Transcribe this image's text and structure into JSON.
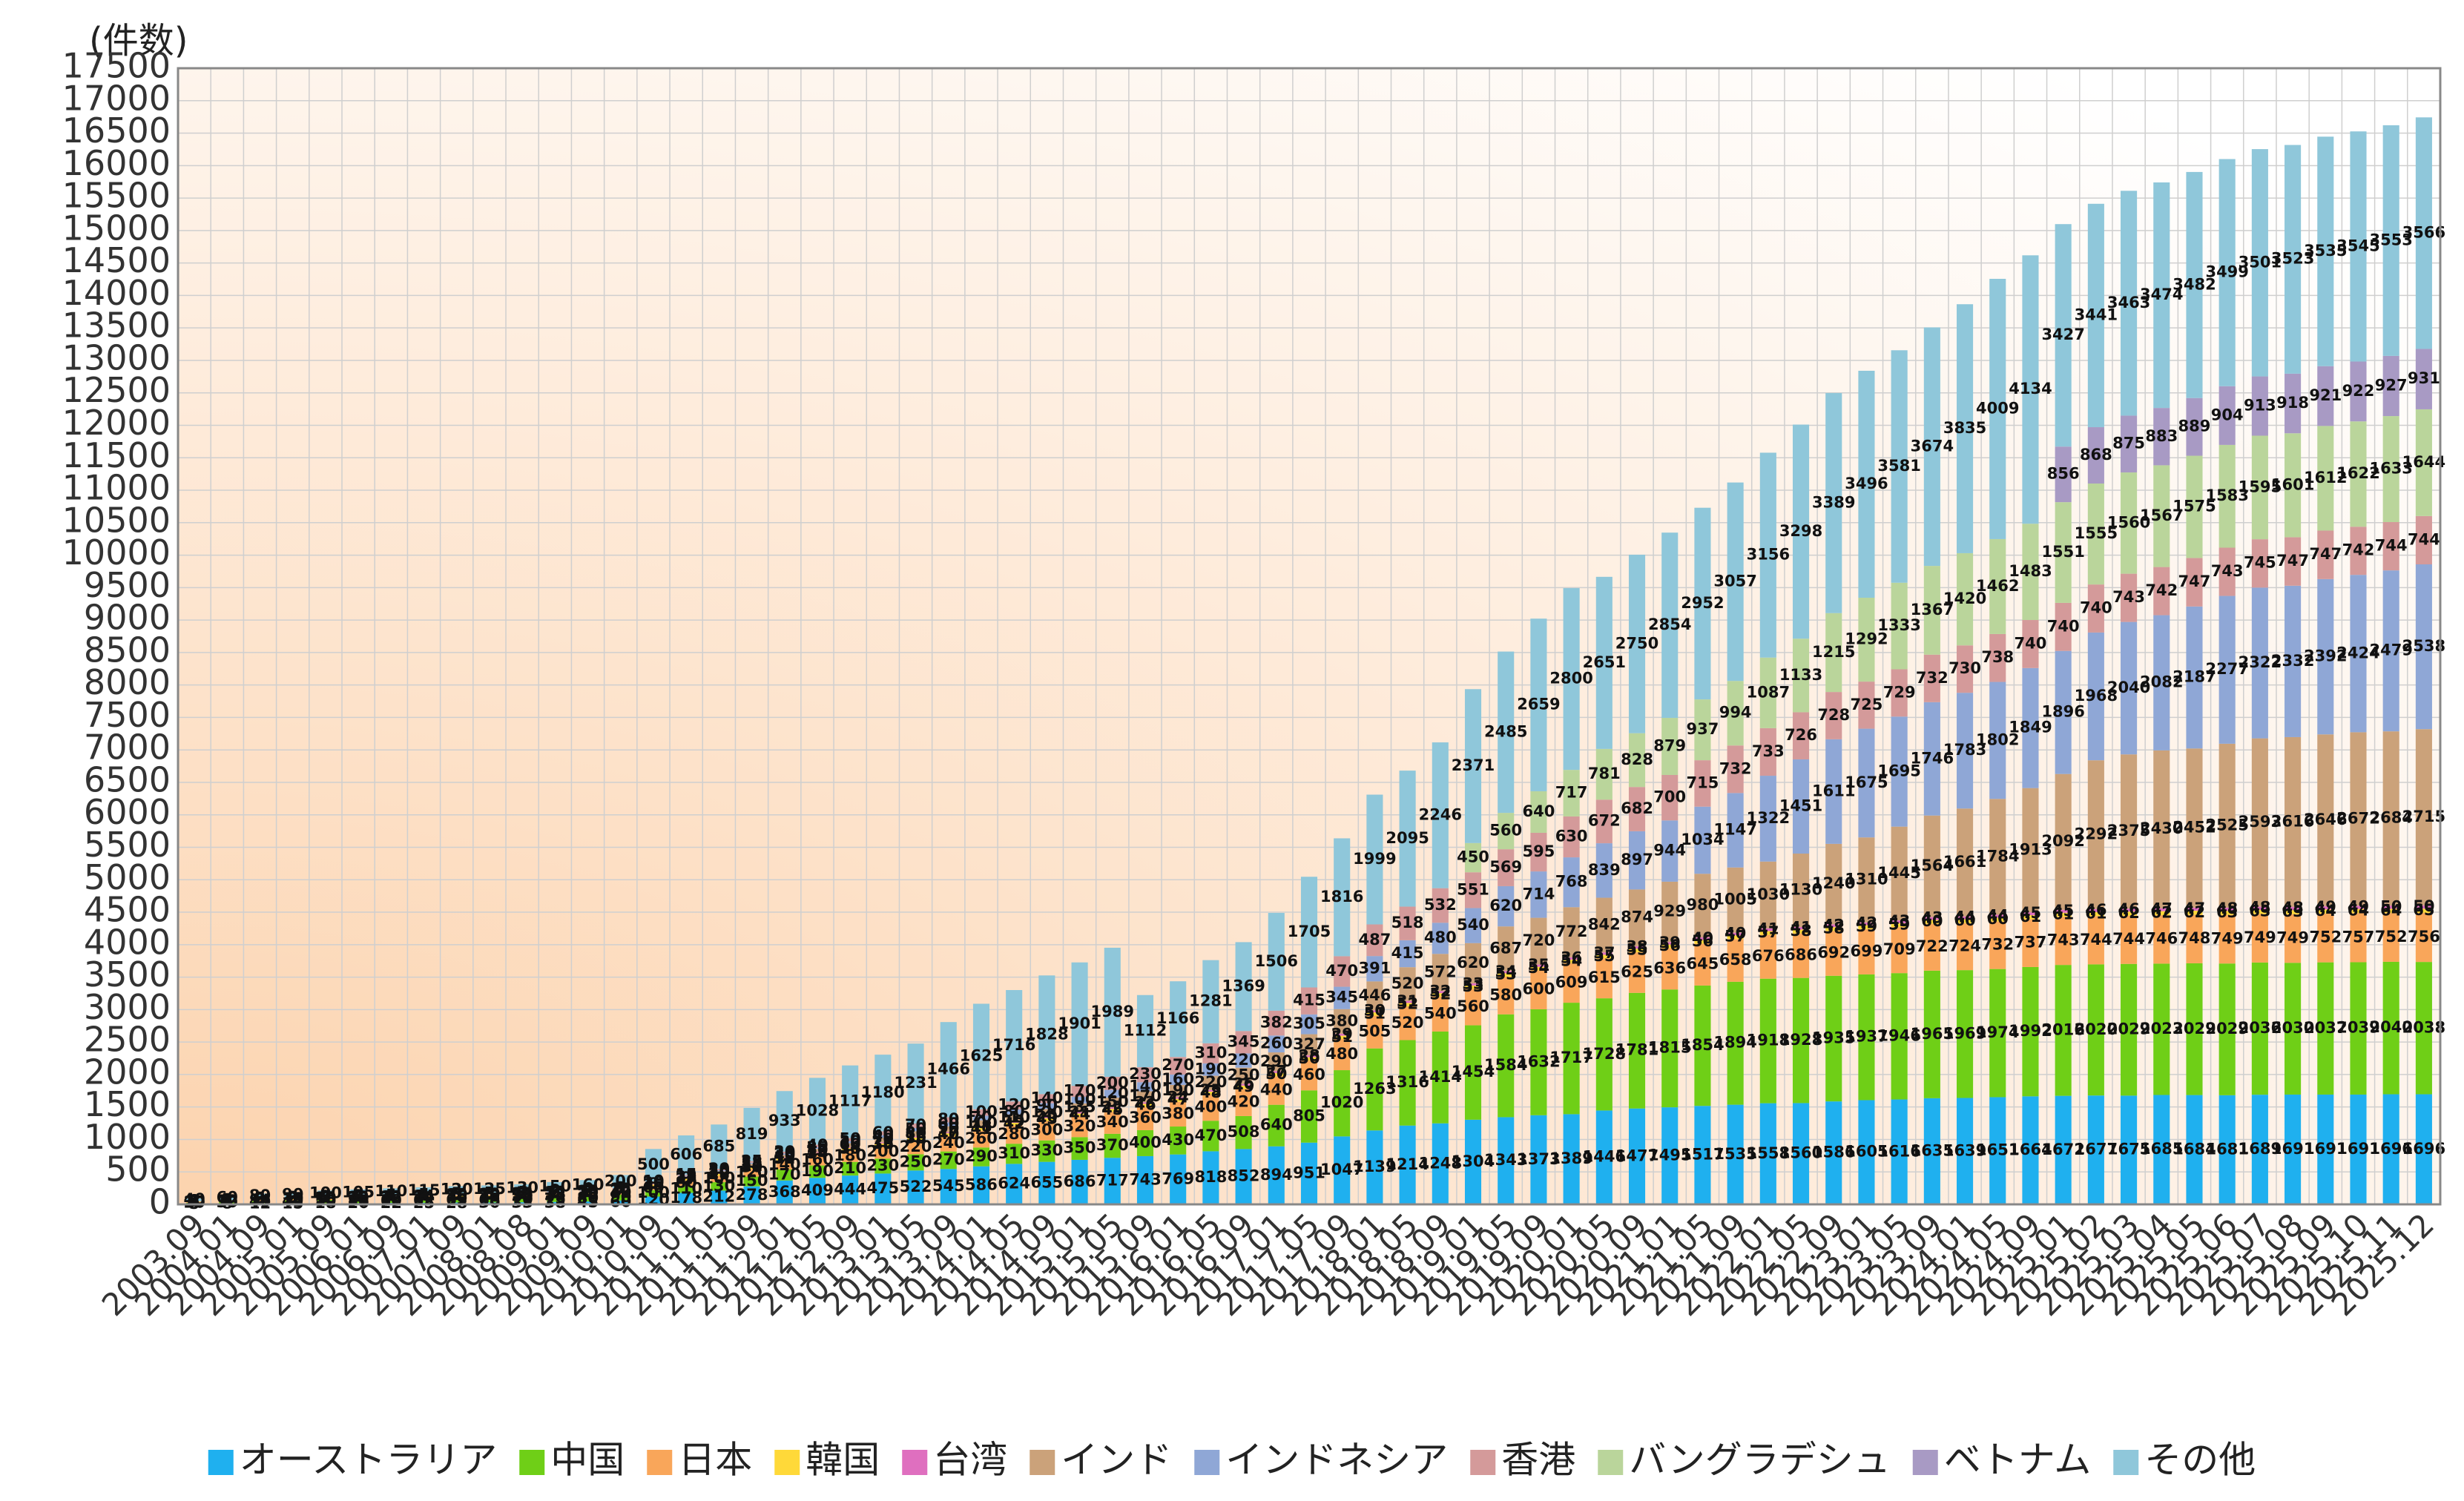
{
  "chart_data": {
    "type": "stacked_bar",
    "y_axis_label": "(件数)",
    "categories": [
      "2003.09",
      "2004.01",
      "2004.09",
      "2005.01",
      "2005.09",
      "2006.01",
      "2006.09",
      "2007.01",
      "2007.09",
      "2008.01",
      "2008.08",
      "2009.01",
      "2009.09",
      "2010.01",
      "2010.09",
      "2011.01",
      "2011.05",
      "2011.09",
      "2012.01",
      "2012.05",
      "2012.09",
      "2013.01",
      "2013.05",
      "2013.09",
      "2014.01",
      "2014.05",
      "2014.09",
      "2015.01",
      "2015.05",
      "2015.09",
      "2016.01",
      "2016.05",
      "2016.09",
      "2017.01",
      "2017.05",
      "2017.09",
      "2018.01",
      "2018.05",
      "2018.09",
      "2019.01",
      "2019.05",
      "2019.09",
      "2020.01",
      "2020.05",
      "2020.09",
      "2021.01",
      "2021.05",
      "2021.09",
      "2022.01",
      "2022.05",
      "2022.09",
      "2023.01",
      "2023.05",
      "2023.09",
      "2024.01",
      "2024.05",
      "2024.09",
      "2025.01",
      "2025.02",
      "2025.03",
      "2025.04",
      "2025.05",
      "2025.06",
      "2025.07",
      "2025.08",
      "2025.09",
      "2025.10",
      "2025.11",
      "2025.12"
    ],
    "series": [
      {
        "name": "オーストラリア",
        "color": "#1fb0ef",
        "values": [
          5,
          8,
          12,
          15,
          18,
          20,
          22,
          25,
          28,
          30,
          33,
          38,
          45,
          60,
          120,
          178,
          212,
          278,
          368,
          409,
          444,
          475,
          522,
          545,
          586,
          624,
          655,
          686,
          717,
          743,
          769,
          818,
          852,
          894,
          951,
          1047,
          1139,
          1214,
          1248,
          1304,
          1343,
          1373,
          1389,
          1446,
          1477,
          1495,
          1517,
          1535,
          1558,
          1560,
          1586,
          1605,
          1616,
          1635,
          1639,
          1651,
          1664,
          1672,
          1677,
          1675,
          1685,
          1684,
          1681,
          1689,
          1691,
          1691,
          1691,
          1696,
          1696
        ]
      },
      {
        "name": "中国",
        "color": "#6fcf17",
        "values": [
          20,
          30,
          40,
          45,
          50,
          55,
          60,
          62,
          65,
          68,
          70,
          75,
          80,
          90,
          100,
          110,
          130,
          150,
          170,
          190,
          210,
          230,
          250,
          270,
          290,
          310,
          330,
          350,
          370,
          400,
          430,
          470,
          508,
          640,
          805,
          1020,
          1263,
          1316,
          1414,
          1454,
          1584,
          1632,
          1717,
          1728,
          1781,
          1815,
          1854,
          1894,
          1918,
          1928,
          1935,
          1937,
          1946,
          1965,
          1969,
          1974,
          1992,
          2016,
          2020,
          2029,
          2023,
          2029,
          2029,
          2036,
          2030,
          2037,
          2039,
          2040,
          2038
        ]
      },
      {
        "name": "日本",
        "color": "#f9a65a",
        "values": [
          10,
          12,
          14,
          16,
          18,
          20,
          22,
          24,
          26,
          28,
          30,
          32,
          35,
          40,
          60,
          80,
          100,
          120,
          140,
          160,
          180,
          200,
          220,
          240,
          260,
          280,
          300,
          320,
          340,
          360,
          380,
          400,
          420,
          440,
          460,
          480,
          505,
          520,
          540,
          560,
          580,
          600,
          609,
          615,
          625,
          636,
          645,
          658,
          676,
          686,
          692,
          699,
          709,
          722,
          724,
          732,
          737,
          743,
          744,
          744,
          746,
          748,
          749,
          749,
          749,
          752,
          757,
          752,
          756
        ]
      },
      {
        "name": "韓国",
        "color": "#ffd939",
        "values": [
          5,
          6,
          8,
          10,
          10,
          12,
          12,
          14,
          15,
          15,
          16,
          18,
          20,
          22,
          25,
          27,
          28,
          30,
          32,
          34,
          35,
          36,
          38,
          40,
          41,
          42,
          43,
          44,
          45,
          46,
          47,
          48,
          49,
          50,
          50,
          51,
          51,
          52,
          52,
          53,
          53,
          54,
          54,
          55,
          55,
          56,
          56,
          57,
          57,
          58,
          58,
          59,
          59,
          60,
          60,
          60,
          61,
          61,
          61,
          62,
          62,
          62,
          63,
          63,
          63,
          64,
          64,
          64,
          65
        ]
      },
      {
        "name": "台湾",
        "color": "#df6fbf",
        "values": [
          2,
          2,
          3,
          3,
          3,
          4,
          4,
          4,
          5,
          5,
          5,
          6,
          6,
          7,
          8,
          9,
          10,
          11,
          12,
          13,
          14,
          15,
          16,
          17,
          18,
          19,
          20,
          21,
          22,
          23,
          24,
          25,
          26,
          27,
          28,
          29,
          30,
          31,
          32,
          33,
          34,
          35,
          36,
          37,
          38,
          39,
          40,
          40,
          41,
          41,
          42,
          42,
          43,
          43,
          44,
          44,
          45,
          45,
          46,
          46,
          47,
          47,
          48,
          48,
          48,
          49,
          49,
          50,
          50
        ]
      },
      {
        "name": "インド",
        "color": "#cba27a",
        "values": [
          5,
          5,
          6,
          6,
          7,
          8,
          8,
          9,
          10,
          10,
          11,
          12,
          13,
          15,
          20,
          25,
          30,
          35,
          40,
          50,
          60,
          70,
          80,
          90,
          100,
          110,
          120,
          135,
          150,
          170,
          190,
          220,
          250,
          290,
          327,
          380,
          446,
          520,
          572,
          620,
          687,
          720,
          772,
          842,
          874,
          929,
          980,
          1005,
          1030,
          1130,
          1240,
          1310,
          1445,
          1564,
          1661,
          1784,
          1913,
          2092,
          2292,
          2375,
          2430,
          2452,
          2525,
          2593,
          2616,
          2646,
          2672,
          2684,
          2715
        ]
      },
      {
        "name": "インドネシア",
        "color": "#8fa7d6",
        "values": [
          2,
          2,
          3,
          3,
          4,
          4,
          5,
          5,
          6,
          6,
          7,
          7,
          8,
          9,
          10,
          12,
          15,
          18,
          20,
          25,
          30,
          40,
          50,
          60,
          70,
          80,
          90,
          100,
          120,
          140,
          160,
          190,
          220,
          260,
          305,
          345,
          391,
          415,
          480,
          540,
          620,
          714,
          768,
          839,
          897,
          944,
          1034,
          1147,
          1322,
          1451,
          1611,
          1675,
          1695,
          1746,
          1783,
          1802,
          1849,
          1896,
          1968,
          2040,
          2082,
          2187,
          2277,
          2322,
          2332,
          2392,
          2424,
          2479,
          2538
        ]
      },
      {
        "name": "香港",
        "color": "#d49a9a",
        "values": [
          1,
          1,
          2,
          2,
          3,
          3,
          4,
          4,
          5,
          5,
          6,
          6,
          7,
          8,
          10,
          15,
          20,
          25,
          30,
          40,
          50,
          60,
          70,
          80,
          100,
          120,
          140,
          170,
          200,
          230,
          270,
          310,
          345,
          382,
          415,
          470,
          487,
          518,
          532,
          551,
          569,
          595,
          630,
          672,
          682,
          700,
          715,
          732,
          733,
          726,
          728,
          725,
          729,
          732,
          730,
          738,
          740,
          740,
          740,
          743,
          742,
          747,
          743,
          745,
          747,
          747,
          742,
          744,
          744
        ]
      },
      {
        "name": "バングラデシュ",
        "color": "#bad59b",
        "values": [
          0,
          0,
          0,
          0,
          0,
          0,
          0,
          0,
          0,
          0,
          0,
          0,
          0,
          0,
          0,
          0,
          0,
          0,
          0,
          0,
          0,
          0,
          0,
          0,
          0,
          0,
          0,
          0,
          0,
          0,
          0,
          0,
          0,
          0,
          0,
          0,
          0,
          0,
          0,
          450,
          560,
          640,
          717,
          781,
          828,
          879,
          937,
          994,
          1087,
          1133,
          1215,
          1292,
          1333,
          1367,
          1420,
          1462,
          1483,
          1551,
          1555,
          1560,
          1567,
          1575,
          1583,
          1595,
          1601,
          1612,
          1622,
          1633,
          1644
        ]
      },
      {
        "name": "ベトナム",
        "color": "#a89ac4",
        "values": [
          0,
          0,
          0,
          0,
          0,
          0,
          0,
          0,
          0,
          0,
          0,
          0,
          0,
          0,
          0,
          0,
          0,
          0,
          0,
          0,
          0,
          0,
          0,
          0,
          0,
          0,
          0,
          0,
          0,
          0,
          0,
          0,
          0,
          0,
          0,
          0,
          0,
          0,
          0,
          0,
          0,
          0,
          0,
          0,
          0,
          0,
          0,
          0,
          0,
          0,
          0,
          0,
          0,
          0,
          0,
          0,
          0,
          856,
          868,
          875,
          883,
          889,
          904,
          913,
          918,
          921,
          922,
          927,
          931
        ]
      },
      {
        "name": "その他",
        "color": "#8fc7da",
        "values": [
          40,
          60,
          80,
          90,
          100,
          105,
          110,
          115,
          120,
          125,
          130,
          150,
          160,
          200,
          500,
          606,
          685,
          819,
          933,
          1028,
          1117,
          1180,
          1231,
          1466,
          1625,
          1716,
          1828,
          1901,
          1989,
          1112,
          1166,
          1281,
          1369,
          1506,
          1705,
          1816,
          1999,
          2095,
          2246,
          2371,
          2485,
          2659,
          2800,
          2651,
          2750,
          2854,
          2952,
          3057,
          3156,
          3298,
          3389,
          3496,
          3581,
          3674,
          3835,
          4009,
          4134,
          3427,
          3441,
          3463,
          3474,
          3482,
          3499,
          3501,
          3523,
          3535,
          3545,
          3553,
          3566
        ]
      }
    ],
    "ylim": [
      0,
      17500
    ],
    "yticks": [
      0,
      500,
      1000,
      1500,
      2000,
      2500,
      3000,
      3500,
      4000,
      4500,
      5000,
      5500,
      6000,
      6500,
      7000,
      7500,
      8000,
      8500,
      9000,
      9500,
      10000,
      10500,
      11000,
      11500,
      12000,
      12500,
      13000,
      13500,
      14000,
      14500,
      15000,
      15500,
      16000,
      16500,
      17000,
      17500
    ],
    "grid": true,
    "legend": "bottom"
  }
}
